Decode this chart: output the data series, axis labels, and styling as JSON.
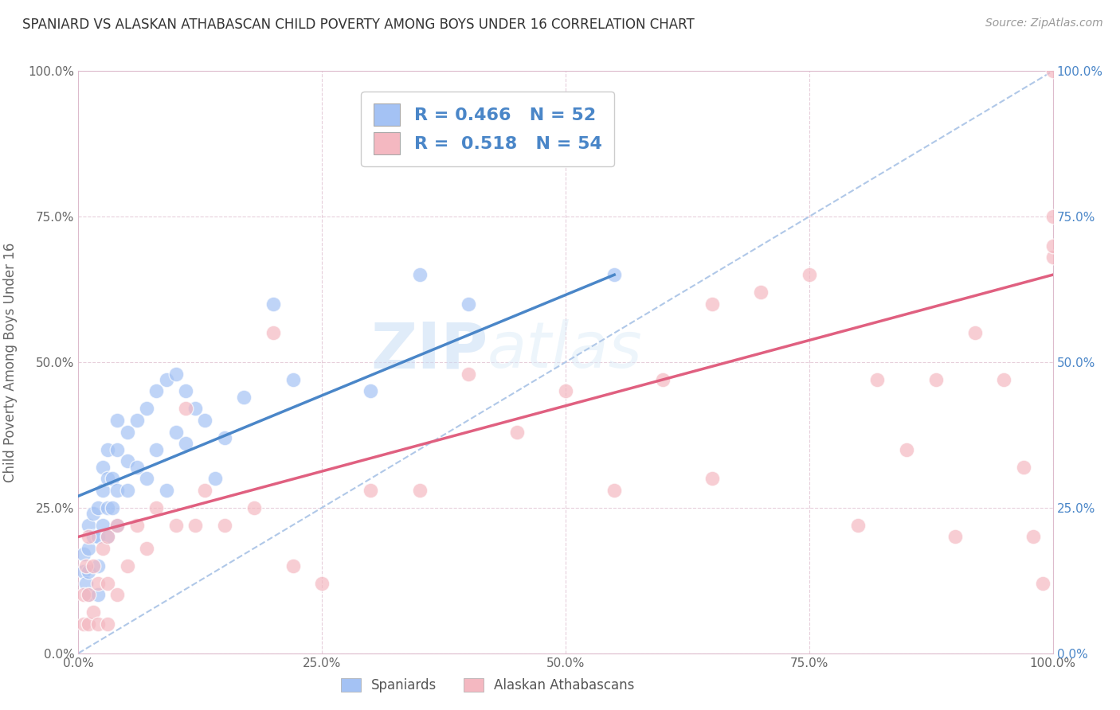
{
  "title": "SPANIARD VS ALASKAN ATHABASCAN CHILD POVERTY AMONG BOYS UNDER 16 CORRELATION CHART",
  "source": "Source: ZipAtlas.com",
  "ylabel": "Child Poverty Among Boys Under 16",
  "xlim": [
    0,
    1
  ],
  "ylim": [
    0,
    1
  ],
  "xticks": [
    0,
    0.25,
    0.5,
    0.75,
    1.0
  ],
  "yticks": [
    0,
    0.25,
    0.5,
    0.75,
    1.0
  ],
  "xticklabels": [
    "0.0%",
    "25.0%",
    "50.0%",
    "75.0%",
    "100.0%"
  ],
  "yticklabels": [
    "0.0%",
    "25.0%",
    "50.0%",
    "75.0%",
    "100.0%"
  ],
  "right_yticklabels": [
    "0.0%",
    "25.0%",
    "50.0%",
    "75.0%",
    "100.0%"
  ],
  "blue_R": "0.466",
  "blue_N": "52",
  "pink_R": "0.518",
  "pink_N": "54",
  "blue_color": "#a4c2f4",
  "pink_color": "#f4b8c1",
  "blue_line_color": "#4a86c8",
  "pink_line_color": "#e06080",
  "diagonal_color": "#b0c8e8",
  "watermark_zip": "ZIP",
  "watermark_atlas": "atlas",
  "spaniards_x": [
    0.005,
    0.005,
    0.008,
    0.01,
    0.01,
    0.01,
    0.01,
    0.015,
    0.015,
    0.02,
    0.02,
    0.02,
    0.02,
    0.025,
    0.025,
    0.025,
    0.03,
    0.03,
    0.03,
    0.03,
    0.035,
    0.035,
    0.04,
    0.04,
    0.04,
    0.04,
    0.05,
    0.05,
    0.05,
    0.06,
    0.06,
    0.07,
    0.07,
    0.08,
    0.08,
    0.09,
    0.09,
    0.1,
    0.1,
    0.11,
    0.11,
    0.12,
    0.13,
    0.14,
    0.15,
    0.17,
    0.2,
    0.22,
    0.3,
    0.35,
    0.4,
    0.55
  ],
  "spaniards_y": [
    0.14,
    0.17,
    0.12,
    0.1,
    0.14,
    0.18,
    0.22,
    0.2,
    0.24,
    0.1,
    0.15,
    0.2,
    0.25,
    0.22,
    0.28,
    0.32,
    0.2,
    0.25,
    0.3,
    0.35,
    0.25,
    0.3,
    0.22,
    0.28,
    0.35,
    0.4,
    0.28,
    0.33,
    0.38,
    0.32,
    0.4,
    0.3,
    0.42,
    0.35,
    0.45,
    0.28,
    0.47,
    0.38,
    0.48,
    0.36,
    0.45,
    0.42,
    0.4,
    0.3,
    0.37,
    0.44,
    0.6,
    0.47,
    0.45,
    0.65,
    0.6,
    0.65
  ],
  "athabascan_x": [
    0.005,
    0.005,
    0.008,
    0.01,
    0.01,
    0.01,
    0.015,
    0.015,
    0.02,
    0.02,
    0.025,
    0.03,
    0.03,
    0.03,
    0.04,
    0.04,
    0.05,
    0.06,
    0.07,
    0.08,
    0.1,
    0.11,
    0.12,
    0.13,
    0.15,
    0.18,
    0.2,
    0.22,
    0.25,
    0.3,
    0.35,
    0.4,
    0.45,
    0.5,
    0.55,
    0.6,
    0.65,
    0.65,
    0.7,
    0.75,
    0.8,
    0.82,
    0.85,
    0.88,
    0.9,
    0.92,
    0.95,
    0.97,
    0.98,
    0.99,
    1.0,
    1.0,
    1.0,
    1.0
  ],
  "athabascan_y": [
    0.05,
    0.1,
    0.15,
    0.05,
    0.1,
    0.2,
    0.07,
    0.15,
    0.05,
    0.12,
    0.18,
    0.05,
    0.12,
    0.2,
    0.1,
    0.22,
    0.15,
    0.22,
    0.18,
    0.25,
    0.22,
    0.42,
    0.22,
    0.28,
    0.22,
    0.25,
    0.55,
    0.15,
    0.12,
    0.28,
    0.28,
    0.48,
    0.38,
    0.45,
    0.28,
    0.47,
    0.3,
    0.6,
    0.62,
    0.65,
    0.22,
    0.47,
    0.35,
    0.47,
    0.2,
    0.55,
    0.47,
    0.32,
    0.2,
    0.12,
    0.68,
    0.7,
    0.75,
    1.0
  ],
  "blue_line_x0": 0.0,
  "blue_line_y0": 0.27,
  "blue_line_x1": 0.55,
  "blue_line_y1": 0.65,
  "pink_line_x0": 0.0,
  "pink_line_y0": 0.2,
  "pink_line_x1": 1.0,
  "pink_line_y1": 0.65
}
